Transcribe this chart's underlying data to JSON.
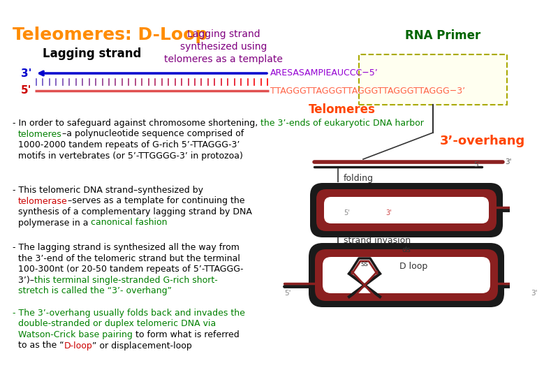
{
  "title": "Teleomeres: D-Loop",
  "title_color": "#FF8C00",
  "title_fontsize": 18,
  "bg_color": "#FFFFFF",
  "lagging_strand_label": "Lagging strand",
  "lagging_strand_label_color": "#000000",
  "lagging_strand_label_fontsize": 12,
  "label_3prime_color": "#0000CD",
  "label_5prime_color": "#CC0000",
  "annotation_color": "#800080",
  "annotation_text": "Lagging strand\nsynthesized using\ntelomeres as a template",
  "annotation_fontsize": 10,
  "rna_primer_label": "RNA Primer",
  "rna_primer_color": "#006400",
  "rna_box_bg": "#FFFFF0",
  "rna_box_edge": "#AAAA00",
  "top_strand_seq": "ARESASAMPIEAUCCC−5’",
  "bottom_strand_seq": "TTAGGGTTAGGGTTAGGGTTAGGGTTAGGG−3’",
  "bottom_strand_color": "#FF6347",
  "top_strand_color": "#9400D3",
  "telomeres_label": "Telomeres",
  "telomeres_color": "#FF4500",
  "telomeres_fontsize": 12,
  "overhang_label": "3’-overhang",
  "overhang_color": "#FF4500",
  "overhang_fontsize": 13,
  "folding_label": "folding",
  "strand_invasion_label": "strand invasion",
  "ds_label": "ds",
  "ss_label": "ss",
  "d_loop_label": "D loop",
  "dark_red": "#8B2020",
  "dark_line": "#1A1A1A",
  "para1_lines": [
    [
      [
        "- In order to safeguard against chromosome shortening, ",
        "#000000"
      ],
      [
        "the 3’-ends of eukaryotic DNA harbor",
        "#008000"
      ]
    ],
    [
      [
        "  ",
        "#000000"
      ],
      [
        "telomeres",
        "#008000"
      ],
      [
        "–a polynucleotide sequence comprised of",
        "#000000"
      ]
    ],
    [
      [
        "  1000-2000 tandem repeats of G-rich 5’-TTAGGG-3’",
        "#000000"
      ]
    ],
    [
      [
        "  motifs in vertebrates (or 5’-TTGGGG-3’ in protozoa)",
        "#000000"
      ]
    ]
  ],
  "para2_lines": [
    [
      [
        "- This telomeric DNA strand–synthesized by",
        "#000000"
      ]
    ],
    [
      [
        "  ",
        "#000000"
      ],
      [
        "telomerase",
        "#CC0000"
      ],
      [
        "–serves as a template for continuing the",
        "#000000"
      ]
    ],
    [
      [
        "  synthesis of a complementary lagging strand by DNA",
        "#000000"
      ]
    ],
    [
      [
        "  polymerase in a ",
        "#000000"
      ],
      [
        "canonical fashion",
        "#008000"
      ]
    ]
  ],
  "para3_lines": [
    [
      [
        "- The lagging strand is synthesized all the way from",
        "#000000"
      ]
    ],
    [
      [
        "  the 3’-end of the telomeric strand but the terminal",
        "#000000"
      ]
    ],
    [
      [
        "  100-300nt (or 20-50 tandem repeats of 5’-TTAGGG-",
        "#000000"
      ]
    ],
    [
      [
        "  3’)–",
        "#000000"
      ],
      [
        "this terminal single-stranded G-rich short-",
        "#008000"
      ]
    ],
    [
      [
        "  stretch is called the “3’- overhang”",
        "#008000"
      ]
    ]
  ],
  "para4_lines": [
    [
      [
        "- The 3’-overhang usually folds back and invades the",
        "#008000"
      ]
    ],
    [
      [
        "  double-stranded or duplex telomeric DNA via",
        "#008000"
      ]
    ],
    [
      [
        "  ",
        "#000000"
      ],
      [
        "Watson-Crick base pairing",
        "#008000"
      ],
      [
        " to form what is referred",
        "#000000"
      ]
    ],
    [
      [
        "  to as the “",
        "#000000"
      ],
      [
        "D-loop",
        "#CC0000"
      ],
      [
        "” or displacement-loop",
        "#000000"
      ]
    ]
  ]
}
